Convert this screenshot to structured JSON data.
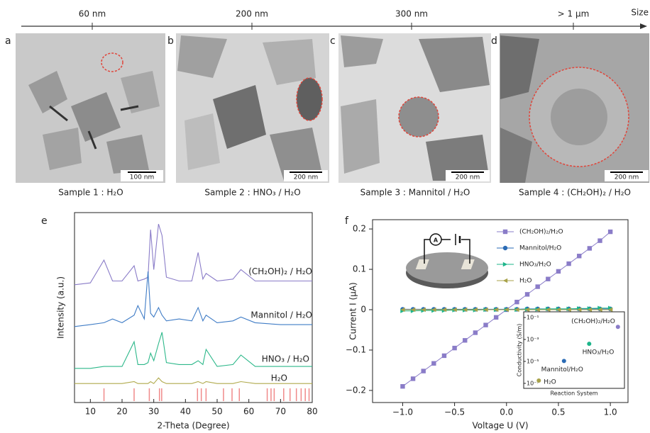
{
  "size_axis": {
    "label": "Size",
    "ticks": [
      "60 nm",
      "200 nm",
      "300 nm",
      "> 1 µm"
    ]
  },
  "panels": [
    {
      "letter": "a",
      "caption": "Sample 1 : H₂O",
      "scale_bar": "100 nm"
    },
    {
      "letter": "b",
      "caption": "Sample 2 : HNO₃ / H₂O",
      "scale_bar": "200 nm"
    },
    {
      "letter": "c",
      "caption": "Sample 3 : Mannitol / H₂O",
      "scale_bar": "200 nm"
    },
    {
      "letter": "d",
      "caption": "Sample 4 : (CH₂OH)₂ / H₂O",
      "scale_bar": "200 nm"
    }
  ],
  "chart_data": [
    {
      "panel": "e",
      "type": "line",
      "x_label": "2-Theta (Degree)",
      "y_label": "Intensity (a.u.)",
      "x": [
        5,
        10,
        14.3,
        17,
        20,
        23.8,
        25,
        27,
        28.2,
        29,
        30,
        31.5,
        32.6,
        34,
        38,
        42,
        44,
        45.5,
        46.5,
        50,
        55,
        57.5,
        62,
        70,
        80
      ],
      "series": [
        {
          "name": "(CH₂OH)₂ / H₂O",
          "color": "#8a7cc8",
          "values": [
            62,
            63,
            75,
            64,
            64,
            72,
            64,
            65,
            66,
            91,
            70,
            94,
            88,
            66,
            64,
            64,
            79,
            65,
            68,
            64,
            65,
            70,
            64,
            64,
            64
          ]
        },
        {
          "name": "Mannitol / H₂O",
          "color": "#3f7cc6",
          "values": [
            40,
            41,
            42,
            44,
            42,
            46,
            51,
            44,
            69,
            47,
            45,
            50,
            46,
            43,
            44,
            43,
            50,
            43,
            46,
            42,
            43,
            45,
            42,
            41,
            41
          ]
        },
        {
          "name": "HNO₃ / H₂O",
          "color": "#2db88a",
          "values": [
            18,
            18,
            19,
            19,
            19,
            32,
            20,
            20,
            21,
            26,
            22,
            31,
            37,
            21,
            20,
            20,
            22,
            20,
            28,
            19,
            20,
            25,
            19,
            19,
            19
          ]
        },
        {
          "name": "H₂O",
          "color": "#b0aa4c",
          "values": [
            10,
            10,
            10,
            10,
            10,
            11,
            10,
            10,
            10,
            11,
            10,
            13,
            11,
            10,
            10,
            10,
            11,
            10,
            11,
            10,
            10,
            11,
            10,
            10,
            10
          ]
        }
      ],
      "reference_lines": {
        "color": "#f08a8a",
        "x": [
          14.3,
          23.8,
          28.6,
          31.8,
          32.5,
          43.8,
          45,
          46.5,
          52,
          54.7,
          57,
          65.8,
          67,
          68,
          71,
          73,
          75,
          76.5,
          77.8,
          79
        ]
      },
      "xlim": [
        5,
        80
      ],
      "ylim": [
        0,
        100
      ],
      "xticks": [
        10,
        20,
        30,
        40,
        50,
        60,
        70,
        80
      ]
    },
    {
      "panel": "f",
      "type": "line",
      "x_label": "Voltage U (V)",
      "y_label": "Current I (µA)",
      "x": [
        -1.0,
        -0.9,
        -0.8,
        -0.7,
        -0.6,
        -0.5,
        -0.4,
        -0.3,
        -0.2,
        -0.1,
        0,
        0.1,
        0.2,
        0.3,
        0.4,
        0.5,
        0.6,
        0.7,
        0.8,
        0.9,
        1.0
      ],
      "series": [
        {
          "name": "(CH₂OH)₂/H₂O",
          "color": "#8a7cc8",
          "marker": "square",
          "values": [
            -0.19,
            -0.171,
            -0.152,
            -0.133,
            -0.114,
            -0.095,
            -0.076,
            -0.057,
            -0.038,
            -0.019,
            0,
            0.019,
            0.038,
            0.057,
            0.076,
            0.095,
            0.114,
            0.133,
            0.152,
            0.171,
            0.193
          ]
        },
        {
          "name": "Mannitol/H₂O",
          "color": "#2a6bb5",
          "marker": "circle",
          "values": [
            0.001,
            0.001,
            0.001,
            0.001,
            0.001,
            0.001,
            0.001,
            0.001,
            0.001,
            0.001,
            0.001,
            0.001,
            0.002,
            0.002,
            0.002,
            0.002,
            0.002,
            0.002,
            0.002,
            0.002,
            0.002
          ]
        },
        {
          "name": "HNO₃/H₂O",
          "color": "#1db58a",
          "marker": "triangle-right",
          "values": [
            -0.003,
            -0.003,
            -0.002,
            -0.002,
            -0.002,
            -0.001,
            -0.001,
            -0.001,
            0,
            0,
            0,
            0,
            0.001,
            0.001,
            0.002,
            0.002,
            0.002,
            0.003,
            0.003,
            0.004,
            0.004
          ]
        },
        {
          "name": "H₂O",
          "color": "#a8a24a",
          "marker": "triangle-left",
          "values": [
            0,
            0,
            0,
            0,
            0,
            0,
            0,
            0,
            0,
            0,
            0,
            0,
            0,
            0,
            0,
            0,
            0,
            0,
            0,
            0,
            0
          ]
        }
      ],
      "xlim": [
        -1.29,
        1.17
      ],
      "ylim": [
        -0.23,
        0.223
      ],
      "xticks": [
        {
          "value": -1,
          "label": "−1.0"
        },
        {
          "value": -0.5,
          "label": "−0.5"
        },
        {
          "value": 0,
          "label": "0.0"
        },
        0.5,
        {
          "value": 1,
          "label": "1.0"
        }
      ],
      "yticks": [
        {
          "value": -0.2,
          "label": "−0.2"
        },
        {
          "value": -0.1,
          "label": "−0.1"
        },
        0,
        0.1,
        0.2
      ],
      "legend": "top-right"
    },
    {
      "type": "scatter",
      "x_label": "Reaction System",
      "y_label": "Conductivity (S/m)",
      "categories": [
        null,
        null,
        null,
        null
      ],
      "values": [
        1.8e-07,
        1.1e-05,
        0.0004,
        0.014
      ],
      "colors": [
        "#a8a24a",
        "#2a6bb5",
        "#1db58a",
        "#8a7cc8"
      ],
      "point_labels": [
        "H₂O",
        "Mannitol/H₂O",
        "HNO₃/H₂O",
        "(CH₂OH)₂/H₂O"
      ],
      "yscale": "log",
      "ylim": [
        3.5e-08,
        0.33
      ],
      "yticks": [
        {
          "value": 0.1,
          "label": "10⁻¹"
        },
        {
          "value": 0.001,
          "label": "10⁻³"
        },
        {
          "value": 1e-05,
          "label": "10⁻⁵"
        },
        {
          "value": 1e-07,
          "label": "10⁻⁷"
        }
      ]
    }
  ]
}
